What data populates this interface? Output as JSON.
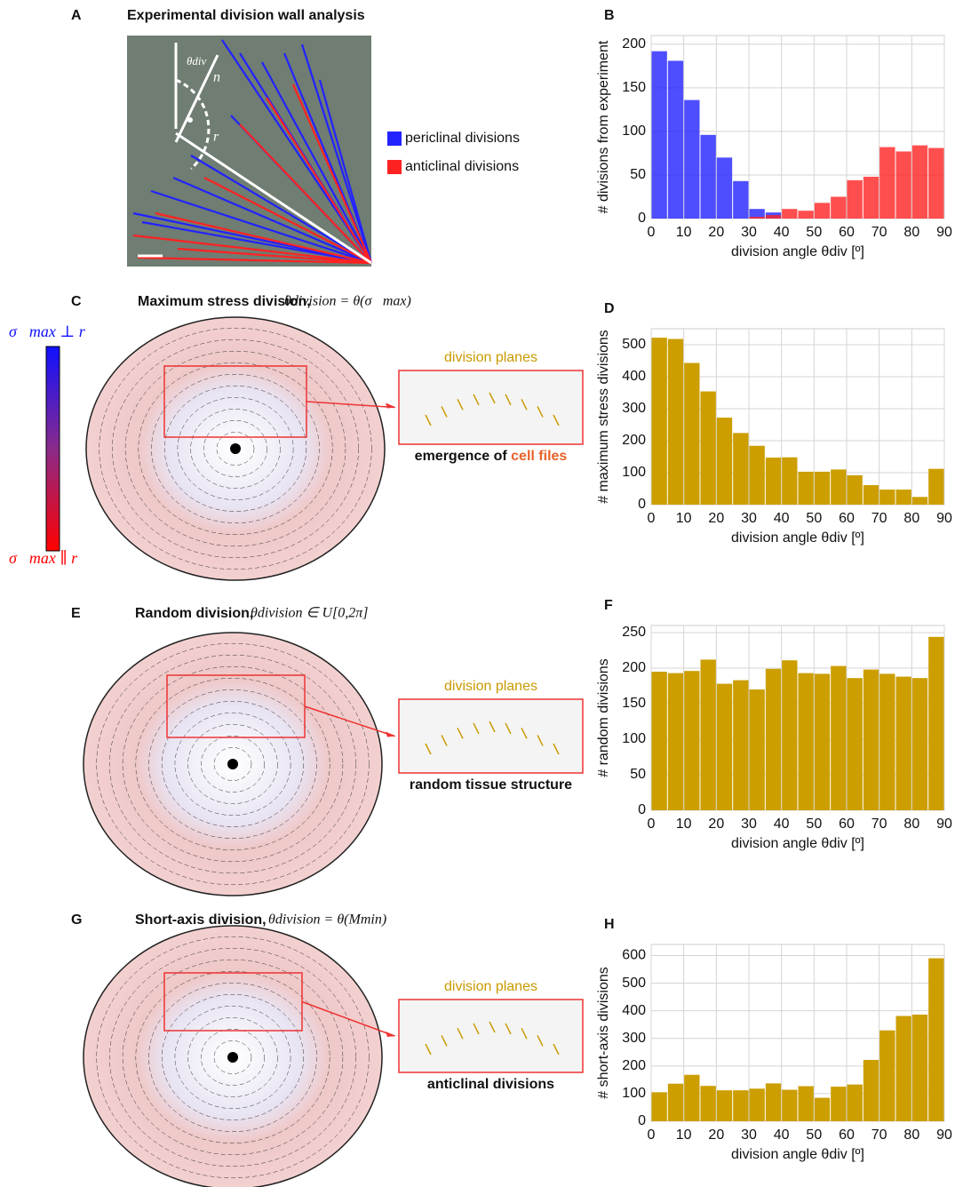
{
  "panels": [
    {
      "label": "A",
      "title": "Experimental division wall analysis",
      "annotations": [
        "θdiv",
        "n⃗",
        "r⃗"
      ]
    },
    {
      "label": "C",
      "title": "Maximum stress division,",
      "formula": "θdivision = θ(σ⃗max)",
      "inset_title": "division planes",
      "caption": "emergence of ",
      "caption_highlight": "cell files",
      "colorbar_top": "σ⃗max ⊥ r⃗",
      "colorbar_bottom": "σ⃗max ∥ r⃗"
    },
    {
      "label": "E",
      "title": "Random division,",
      "formula": "θdivision ∈ U[0,2π]",
      "inset_title": "division planes",
      "caption": "random tissue structure"
    },
    {
      "label": "G",
      "title": "Short-axis division,",
      "formula": "θdivision = θ(Mmin)",
      "inset_title": "division planes",
      "caption": "anticlinal divisions"
    }
  ],
  "chart_data": [
    {
      "type": "histogram",
      "label": "B",
      "x_label": "division angle θdiv [º]",
      "y_label": "# divisions from experiment",
      "bins": [
        0,
        5,
        10,
        15,
        20,
        25,
        30,
        35,
        40,
        45,
        50,
        55,
        60,
        65,
        70,
        75,
        80,
        85,
        90
      ],
      "series": [
        {
          "name": "periclinal divisions",
          "color": "#2222ff",
          "values": [
            192,
            181,
            136,
            96,
            70,
            43,
            11,
            7,
            0,
            0,
            0,
            0,
            0,
            0,
            0,
            0,
            0,
            0
          ]
        },
        {
          "name": "anticlinal divisions",
          "color": "#ff2222",
          "values": [
            0,
            0,
            0,
            0,
            0,
            0,
            2,
            4,
            11,
            9,
            18,
            25,
            44,
            48,
            82,
            77,
            84,
            81
          ]
        }
      ],
      "xlim": [
        0,
        90
      ],
      "xticks": [
        0,
        10,
        20,
        30,
        40,
        50,
        60,
        70,
        80,
        90
      ],
      "ylim": [
        0,
        210
      ],
      "yticks": [
        0,
        50,
        100,
        150,
        200
      ],
      "grid": true
    },
    {
      "type": "histogram",
      "label": "D",
      "x_label": "division angle θdiv [º]",
      "y_label": "# maximum stress divisions",
      "bins": [
        0,
        5,
        10,
        15,
        20,
        25,
        30,
        35,
        40,
        45,
        50,
        55,
        60,
        65,
        70,
        75,
        80,
        85,
        90
      ],
      "color": "#cc9e00",
      "values": [
        522,
        518,
        443,
        354,
        272,
        224,
        184,
        147,
        148,
        103,
        103,
        110,
        92,
        61,
        47,
        47,
        24,
        112
      ],
      "xlim": [
        0,
        90
      ],
      "xticks": [
        0,
        10,
        20,
        30,
        40,
        50,
        60,
        70,
        80,
        90
      ],
      "ylim": [
        0,
        550
      ],
      "yticks": [
        0,
        100,
        200,
        300,
        400,
        500
      ],
      "grid": true
    },
    {
      "type": "histogram",
      "label": "F",
      "x_label": "division angle θdiv [º]",
      "y_label": "# random divisions",
      "bins": [
        0,
        5,
        10,
        15,
        20,
        25,
        30,
        35,
        40,
        45,
        50,
        55,
        60,
        65,
        70,
        75,
        80,
        85,
        90
      ],
      "color": "#cc9e00",
      "values": [
        195,
        193,
        196,
        212,
        178,
        183,
        170,
        199,
        211,
        193,
        192,
        203,
        186,
        198,
        192,
        188,
        186,
        244
      ],
      "xlim": [
        0,
        90
      ],
      "xticks": [
        0,
        10,
        20,
        30,
        40,
        50,
        60,
        70,
        80,
        90
      ],
      "ylim": [
        0,
        260
      ],
      "yticks": [
        0,
        50,
        100,
        150,
        200,
        250
      ],
      "grid": true
    },
    {
      "type": "histogram",
      "label": "H",
      "x_label": "division angle θdiv [º]",
      "y_label": "# short-axis divisions",
      "bins": [
        0,
        5,
        10,
        15,
        20,
        25,
        30,
        35,
        40,
        45,
        50,
        55,
        60,
        65,
        70,
        75,
        80,
        85,
        90
      ],
      "color": "#cc9e00",
      "values": [
        105,
        136,
        168,
        128,
        112,
        112,
        118,
        137,
        114,
        127,
        85,
        125,
        133,
        222,
        329,
        381,
        386,
        590
      ],
      "xlim": [
        0,
        90
      ],
      "xticks": [
        0,
        10,
        20,
        30,
        40,
        50,
        60,
        70,
        80,
        90
      ],
      "ylim": [
        0,
        640
      ],
      "yticks": [
        0,
        100,
        200,
        300,
        400,
        500,
        600
      ],
      "grid": true
    }
  ]
}
